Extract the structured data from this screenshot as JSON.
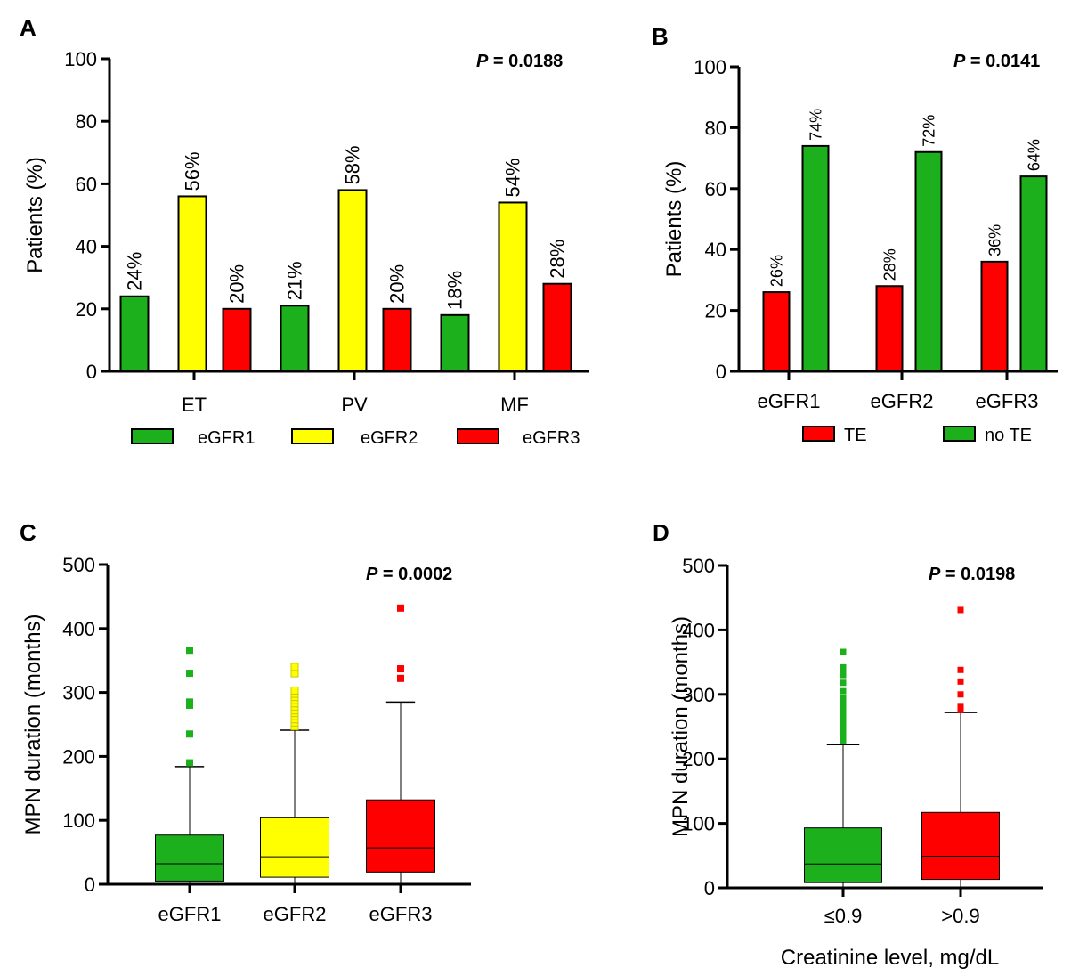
{
  "chart_data": [
    {
      "panel": "A",
      "type": "bar",
      "p_label": "P",
      "p_text": " = 0.0188",
      "ylabel": "Patients (%)",
      "xlabel": "",
      "ylim": [
        0,
        100
      ],
      "yticks": [
        0,
        20,
        40,
        60,
        80,
        100
      ],
      "categories": [
        "ET",
        "PV",
        "MF"
      ],
      "series": [
        {
          "name": "eGFR1",
          "color": "#1cb01c",
          "values": [
            24,
            21,
            18
          ],
          "labels": [
            "24%",
            "21%",
            "18%"
          ]
        },
        {
          "name": "eGFR2",
          "color": "#ffff00",
          "values": [
            56,
            58,
            54
          ],
          "labels": [
            "56%",
            "58%",
            "54%"
          ]
        },
        {
          "name": "eGFR3",
          "color": "#ff0000",
          "values": [
            20,
            20,
            28
          ],
          "labels": [
            "20%",
            "20%",
            "28%"
          ]
        }
      ],
      "legend": "bottom"
    },
    {
      "panel": "B",
      "type": "bar",
      "p_label": "P",
      "p_text": " = 0.0141",
      "ylabel": "Patients (%)",
      "xlabel": "",
      "ylim": [
        0,
        100
      ],
      "yticks": [
        0,
        20,
        40,
        60,
        80,
        100
      ],
      "categories": [
        "eGFR1",
        "eGFR2",
        "eGFR3"
      ],
      "series": [
        {
          "name": "TE",
          "color": "#ff0000",
          "values": [
            26,
            28,
            36
          ],
          "labels": [
            "26%",
            "28%",
            "36%"
          ]
        },
        {
          "name": "no TE",
          "color": "#1cb01c",
          "values": [
            74,
            72,
            64
          ],
          "labels": [
            "74%",
            "72%",
            "64%"
          ]
        }
      ],
      "legend": "bottom"
    },
    {
      "panel": "C",
      "type": "box",
      "p_label": "P",
      "p_text": " = 0.0002",
      "ylabel": "MPN duration (months)",
      "xlabel": "",
      "ylim": [
        0,
        500
      ],
      "yticks": [
        0,
        100,
        200,
        300,
        400,
        500
      ],
      "categories": [
        "eGFR1",
        "eGFR2",
        "eGFR3"
      ],
      "boxes": [
        {
          "name": "eGFR1",
          "color": "#1cb01c",
          "min": 0,
          "q1": 5,
          "median": 32,
          "q3": 77,
          "max": 184,
          "outliers": [
            190,
            235,
            280,
            285,
            330,
            366
          ]
        },
        {
          "name": "eGFR2",
          "color": "#ffff00",
          "min": 0,
          "q1": 11,
          "median": 43,
          "q3": 104,
          "max": 241,
          "outliers": [
            247,
            253,
            258,
            263,
            268,
            272,
            278,
            283,
            288,
            293,
            298,
            303,
            330,
            340
          ]
        },
        {
          "name": "eGFR3",
          "color": "#ff0000",
          "min": 0,
          "q1": 19,
          "median": 57,
          "q3": 132,
          "max": 285,
          "outliers": [
            322,
            337,
            432
          ]
        }
      ]
    },
    {
      "panel": "D",
      "type": "box",
      "p_label": "P",
      "p_text": " = 0.0198",
      "ylabel": "MPN duration (months)",
      "xlabel": "Creatinine level, mg/dL",
      "ylim": [
        0,
        500
      ],
      "yticks": [
        0,
        100,
        200,
        300,
        400,
        500
      ],
      "categories": [
        "≤0.9",
        ">0.9"
      ],
      "boxes": [
        {
          "name": "≤0.9",
          "color": "#1cb01c",
          "min": 0,
          "q1": 8,
          "median": 37,
          "q3": 93,
          "max": 222,
          "outliers": [
            228,
            234,
            240,
            246,
            252,
            258,
            264,
            270,
            276,
            282,
            288,
            294,
            305,
            318,
            330,
            336,
            342,
            366
          ]
        },
        {
          "name": ">0.9",
          "color": "#ff0000",
          "min": 0,
          "q1": 13,
          "median": 49,
          "q3": 117,
          "max": 272,
          "outliers": [
            276,
            282,
            300,
            320,
            338,
            431
          ]
        }
      ]
    }
  ]
}
